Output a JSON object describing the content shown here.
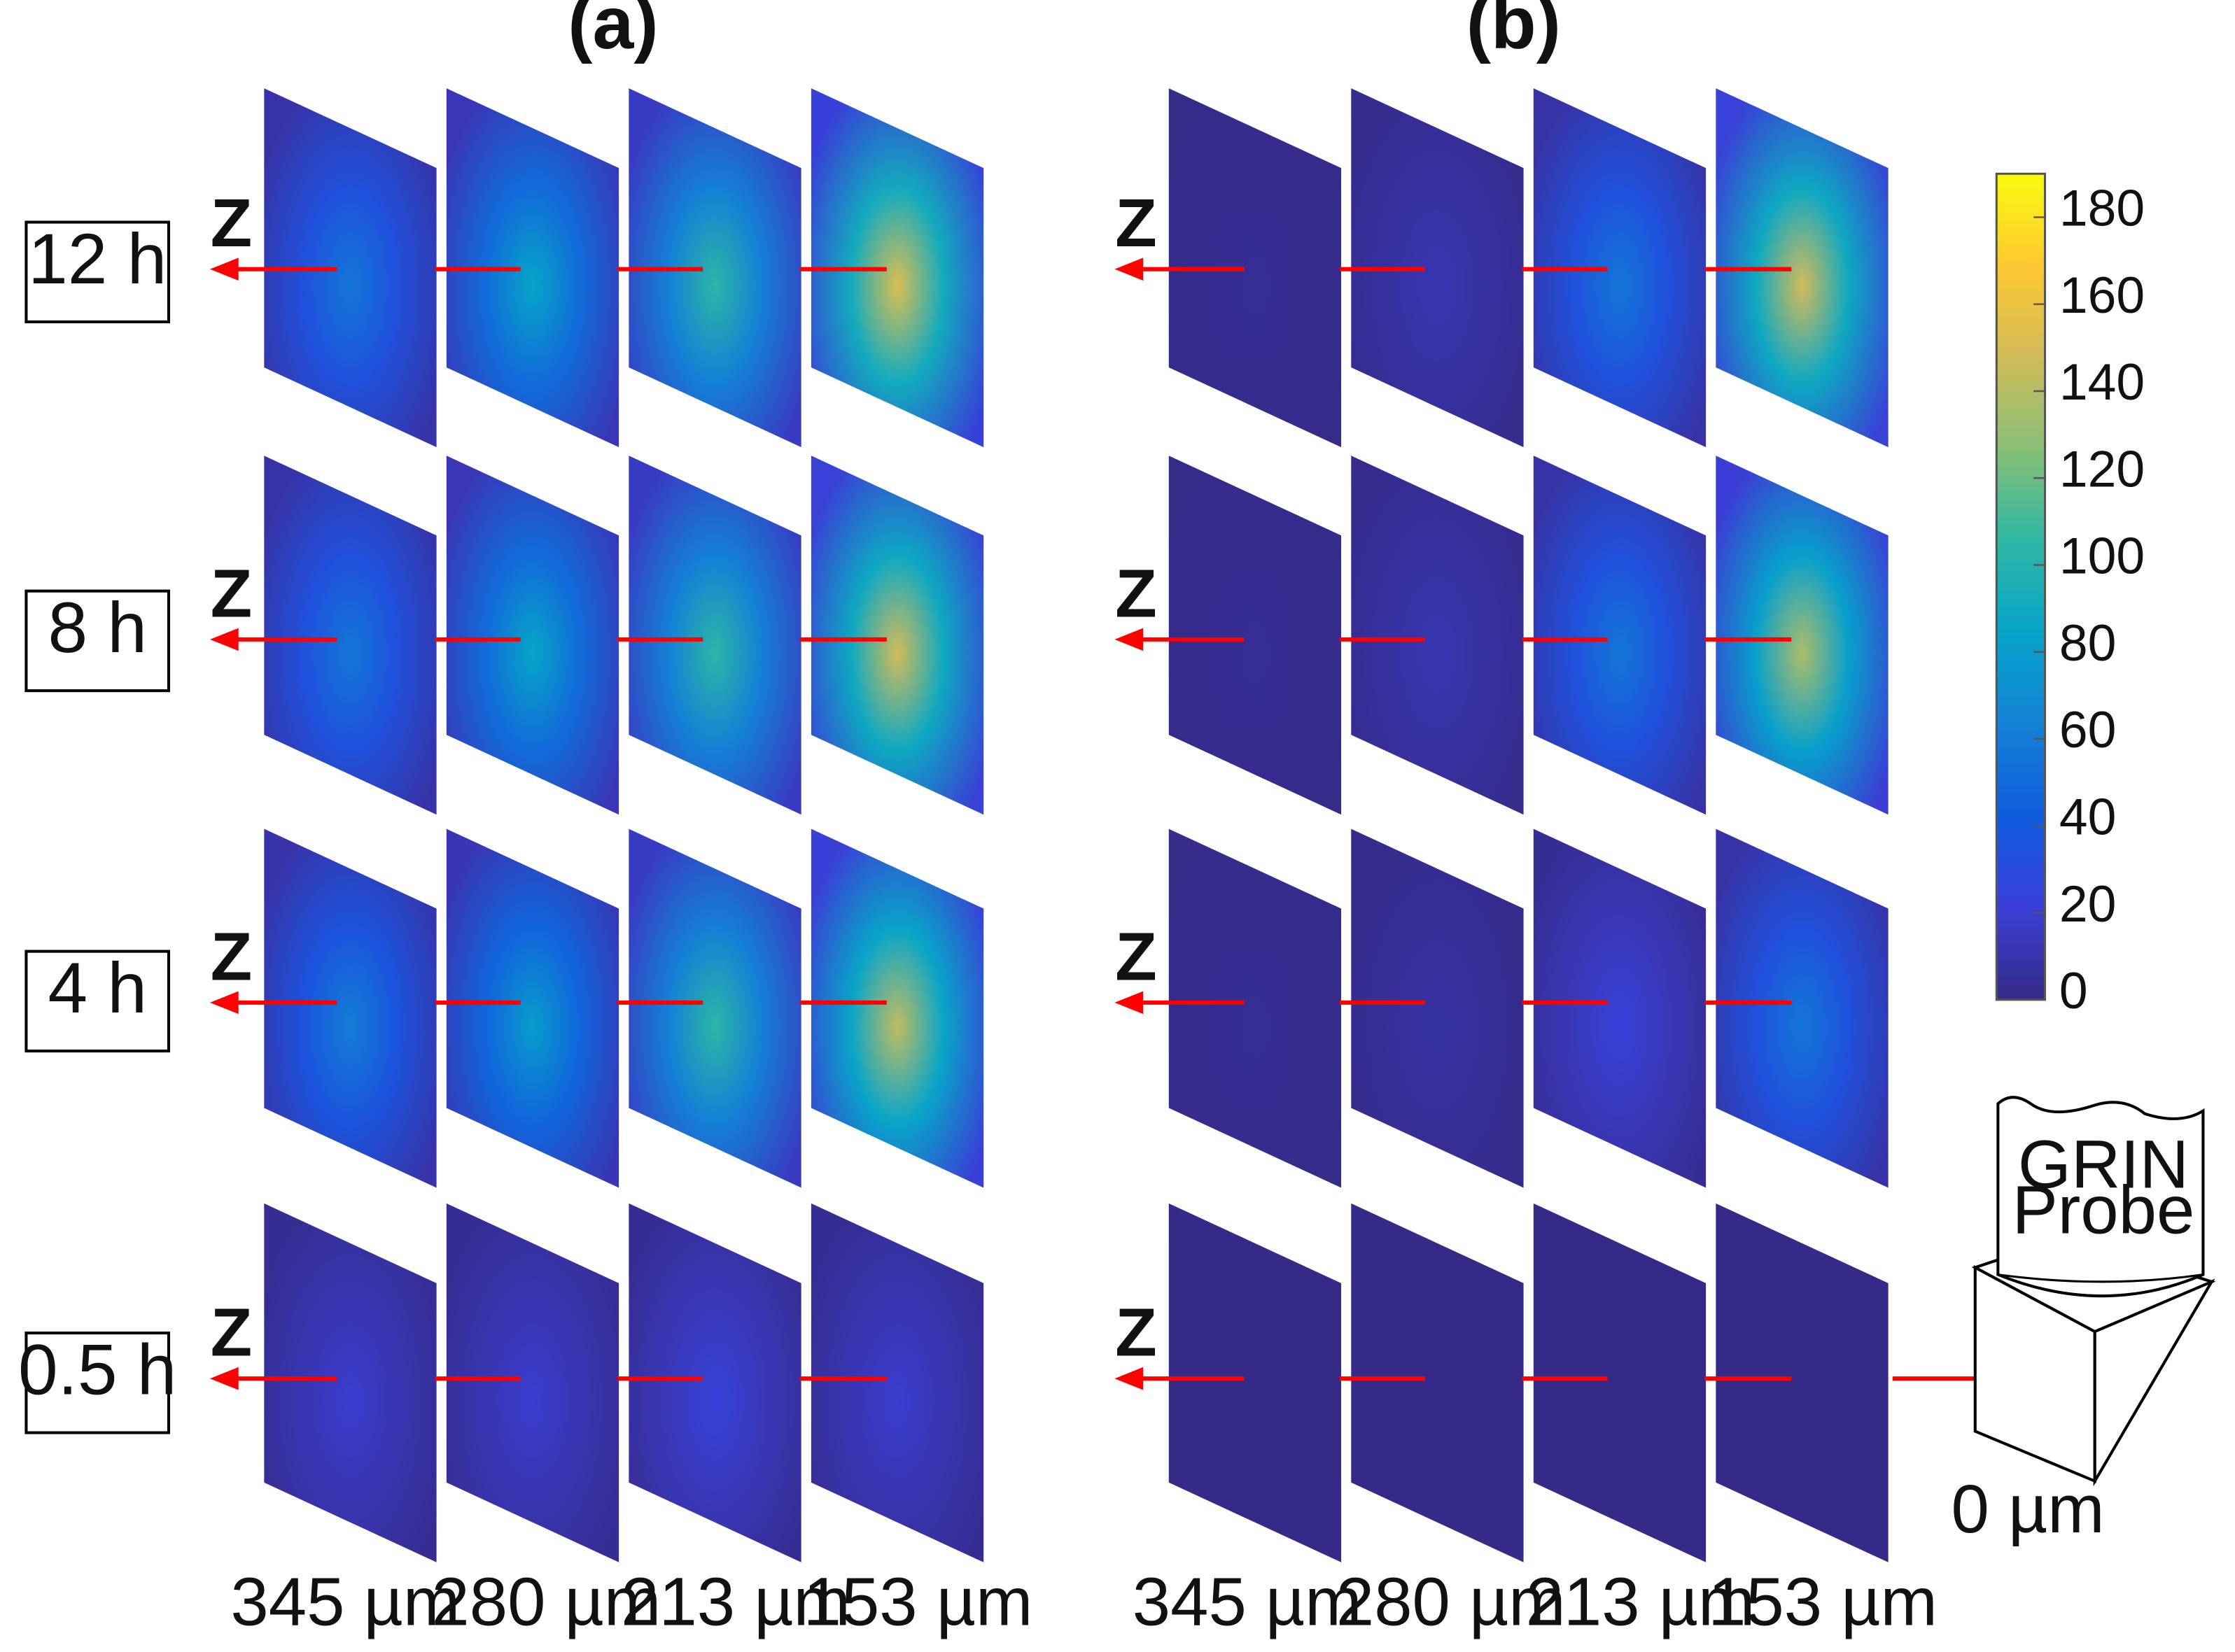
{
  "panels": [
    {
      "label": "(a)"
    },
    {
      "label": "(b)"
    }
  ],
  "time_labels": [
    "12 h",
    "8 h",
    "4 h",
    "0.5 h"
  ],
  "axis_label": "Z",
  "depth_labels": [
    "345 µm",
    "280 µm",
    "213 µm",
    "153 µm"
  ],
  "probe": {
    "line1": "GRIN",
    "line2": "Probe",
    "depth": "0 µm"
  },
  "colorbar": {
    "ticks": [
      "180",
      "160",
      "140",
      "120",
      "100",
      "80",
      "60",
      "40",
      "20",
      "0"
    ],
    "min": 0,
    "max": 190,
    "colormap": "parula",
    "stops": [
      "#352a87",
      "#3b3fd6",
      "#0f5cdd",
      "#1481d6",
      "#06a4ca",
      "#2eb7a4",
      "#87bf77",
      "#d1bb59",
      "#fec832",
      "#f9fb0e"
    ]
  },
  "intensity": {
    "comment_free": true,
    "a": [
      [
        0.3,
        0.45,
        0.55,
        0.8
      ],
      [
        0.3,
        0.45,
        0.55,
        0.78
      ],
      [
        0.32,
        0.42,
        0.55,
        0.75
      ],
      [
        0.1,
        0.1,
        0.12,
        0.1
      ]
    ],
    "b": [
      [
        0.02,
        0.06,
        0.3,
        0.78
      ],
      [
        0.02,
        0.06,
        0.3,
        0.72
      ],
      [
        0.02,
        0.04,
        0.12,
        0.3
      ],
      [
        0.0,
        0.0,
        0.0,
        0.0
      ]
    ]
  },
  "colors": {
    "arrow": "#ff0000",
    "slice_base": "#352a87",
    "frame": "#000000"
  }
}
